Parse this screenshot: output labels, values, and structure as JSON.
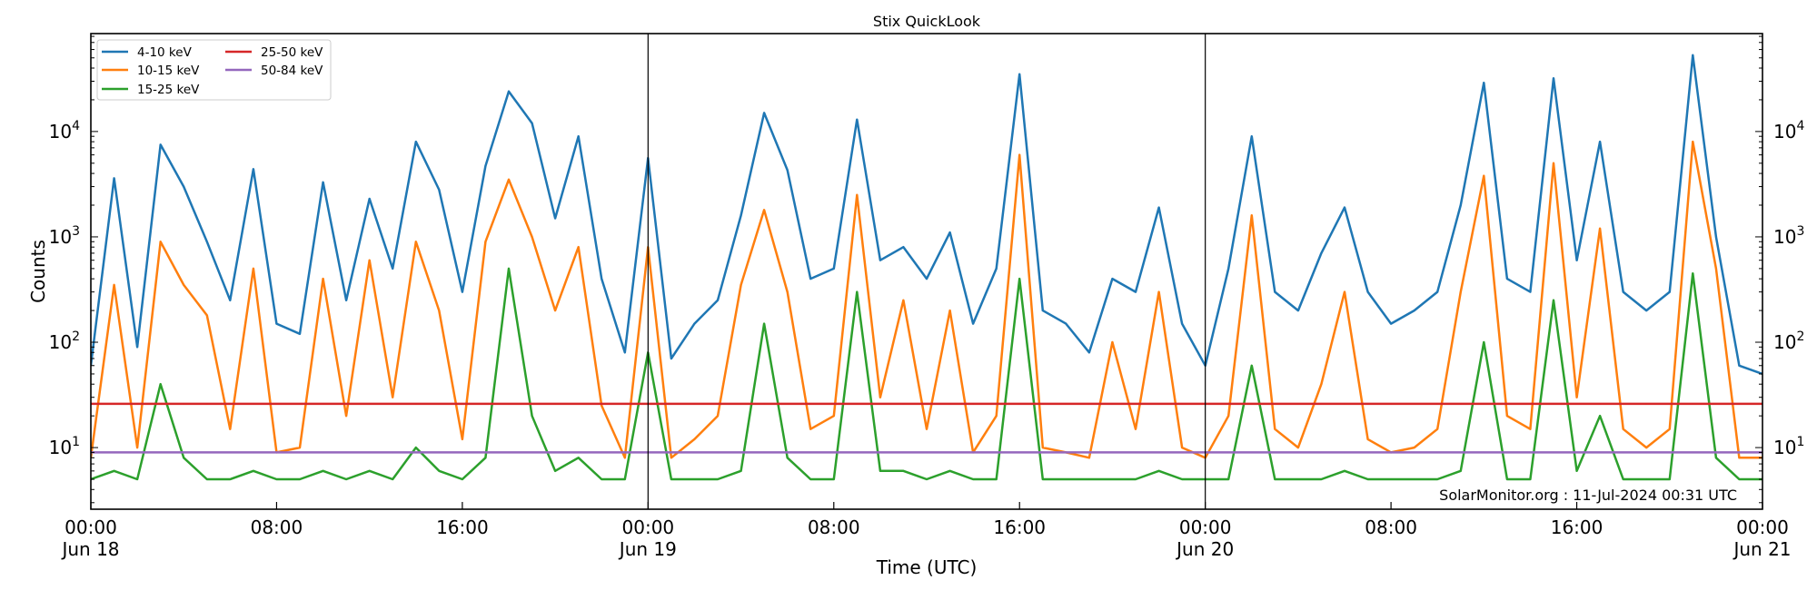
{
  "chart_data": {
    "type": "line",
    "title": "Stix QuickLook",
    "xlabel": "Time (UTC)",
    "ylabel": "Counts",
    "yscale": "log",
    "ylim": [
      2.6,
      85000
    ],
    "xlim": [
      "2024-06-18 00:00",
      "2024-06-21 00:00"
    ],
    "grid": false,
    "legend_placement": "top-left",
    "x_ticks": [
      {
        "at": "2024-06-18 00:00",
        "label": "00:00",
        "sub": "Jun 18"
      },
      {
        "at": "2024-06-18 08:00",
        "label": "08:00",
        "sub": ""
      },
      {
        "at": "2024-06-18 16:00",
        "label": "16:00",
        "sub": ""
      },
      {
        "at": "2024-06-19 00:00",
        "label": "00:00",
        "sub": "Jun 19"
      },
      {
        "at": "2024-06-19 08:00",
        "label": "08:00",
        "sub": ""
      },
      {
        "at": "2024-06-19 16:00",
        "label": "16:00",
        "sub": ""
      },
      {
        "at": "2024-06-20 00:00",
        "label": "00:00",
        "sub": "Jun 20"
      },
      {
        "at": "2024-06-20 08:00",
        "label": "08:00",
        "sub": ""
      },
      {
        "at": "2024-06-20 16:00",
        "label": "16:00",
        "sub": ""
      },
      {
        "at": "2024-06-21 00:00",
        "label": "00:00",
        "sub": "Jun 21"
      }
    ],
    "day_lines": [
      "2024-06-19 00:00",
      "2024-06-20 00:00"
    ],
    "y_ticks": [
      {
        "value": 10,
        "base": "10",
        "exp": "1"
      },
      {
        "value": 100,
        "base": "10",
        "exp": "2"
      },
      {
        "value": 1000,
        "base": "10",
        "exp": "3"
      },
      {
        "value": 10000,
        "base": "10",
        "exp": "4"
      }
    ],
    "annotation": "SolarMonitor.org : 11-Jul-2024 00:31 UTC",
    "x": [
      "2024-06-18 00:00",
      "2024-06-18 01:00",
      "2024-06-18 02:00",
      "2024-06-18 03:00",
      "2024-06-18 04:00",
      "2024-06-18 05:00",
      "2024-06-18 06:00",
      "2024-06-18 07:00",
      "2024-06-18 08:00",
      "2024-06-18 09:00",
      "2024-06-18 10:00",
      "2024-06-18 11:00",
      "2024-06-18 12:00",
      "2024-06-18 13:00",
      "2024-06-18 14:00",
      "2024-06-18 15:00",
      "2024-06-18 16:00",
      "2024-06-18 17:00",
      "2024-06-18 18:00",
      "2024-06-18 19:00",
      "2024-06-18 20:00",
      "2024-06-18 21:00",
      "2024-06-18 22:00",
      "2024-06-18 23:00",
      "2024-06-19 00:00",
      "2024-06-19 01:00",
      "2024-06-19 02:00",
      "2024-06-19 03:00",
      "2024-06-19 04:00",
      "2024-06-19 05:00",
      "2024-06-19 06:00",
      "2024-06-19 07:00",
      "2024-06-19 08:00",
      "2024-06-19 09:00",
      "2024-06-19 10:00",
      "2024-06-19 11:00",
      "2024-06-19 12:00",
      "2024-06-19 13:00",
      "2024-06-19 14:00",
      "2024-06-19 15:00",
      "2024-06-19 16:00",
      "2024-06-19 17:00",
      "2024-06-19 18:00",
      "2024-06-19 19:00",
      "2024-06-19 20:00",
      "2024-06-19 21:00",
      "2024-06-19 22:00",
      "2024-06-19 23:00",
      "2024-06-20 00:00",
      "2024-06-20 01:00",
      "2024-06-20 02:00",
      "2024-06-20 03:00",
      "2024-06-20 04:00",
      "2024-06-20 05:00",
      "2024-06-20 06:00",
      "2024-06-20 07:00",
      "2024-06-20 08:00",
      "2024-06-20 09:00",
      "2024-06-20 10:00",
      "2024-06-20 11:00",
      "2024-06-20 12:00",
      "2024-06-20 13:00",
      "2024-06-20 14:00",
      "2024-06-20 15:00",
      "2024-06-20 16:00",
      "2024-06-20 17:00",
      "2024-06-20 18:00",
      "2024-06-20 19:00",
      "2024-06-20 20:00",
      "2024-06-20 21:00",
      "2024-06-20 22:00",
      "2024-06-20 23:00",
      "2024-06-21 00:00"
    ],
    "series": [
      {
        "name": "4-10 keV",
        "color": "#1f77b4",
        "values": [
          60,
          3600,
          90,
          7500,
          3000,
          900,
          250,
          4400,
          150,
          120,
          3300,
          250,
          2300,
          500,
          8000,
          2800,
          300,
          4700,
          24000,
          12000,
          1500,
          9000,
          400,
          80,
          5600,
          70,
          150,
          250,
          1600,
          15000,
          4300,
          400,
          500,
          13000,
          600,
          800,
          400,
          1100,
          150,
          500,
          35000,
          200,
          150,
          80,
          400,
          300,
          1900,
          150,
          60,
          500,
          9000,
          300,
          200,
          700,
          1900,
          300,
          150,
          200,
          300,
          2000,
          29000,
          400,
          300,
          32000,
          600,
          8000,
          300,
          200,
          300,
          53000,
          1000,
          60,
          50
        ]
      },
      {
        "name": "10-15 keV",
        "color": "#ff7f0e",
        "values": [
          8,
          350,
          10,
          900,
          350,
          180,
          15,
          500,
          9,
          10,
          400,
          20,
          600,
          30,
          900,
          200,
          12,
          900,
          3500,
          1000,
          200,
          800,
          25,
          8,
          800,
          8,
          12,
          20,
          350,
          1800,
          300,
          15,
          20,
          2500,
          30,
          250,
          15,
          200,
          9,
          20,
          6000,
          10,
          9,
          8,
          100,
          15,
          300,
          10,
          8,
          20,
          1600,
          15,
          10,
          40,
          300,
          12,
          9,
          10,
          15,
          300,
          3800,
          20,
          15,
          5000,
          30,
          1200,
          15,
          10,
          15,
          8000,
          500,
          8,
          8
        ]
      },
      {
        "name": "15-25 keV",
        "color": "#2ca02c",
        "values": [
          5,
          6,
          5,
          40,
          8,
          5,
          5,
          6,
          5,
          5,
          6,
          5,
          6,
          5,
          10,
          6,
          5,
          8,
          500,
          20,
          6,
          8,
          5,
          5,
          80,
          5,
          5,
          5,
          6,
          150,
          8,
          5,
          5,
          300,
          6,
          6,
          5,
          6,
          5,
          5,
          400,
          5,
          5,
          5,
          5,
          5,
          6,
          5,
          5,
          5,
          60,
          5,
          5,
          5,
          6,
          5,
          5,
          5,
          5,
          6,
          100,
          5,
          5,
          250,
          6,
          20,
          5,
          5,
          5,
          450,
          8,
          5,
          5
        ]
      },
      {
        "name": "25-50 keV",
        "color": "#d62728",
        "values": [
          26,
          26,
          26,
          26,
          26,
          26,
          26,
          26,
          26,
          26,
          26,
          26,
          26,
          26,
          26,
          26,
          26,
          26,
          26,
          26,
          26,
          26,
          26,
          26,
          26,
          26,
          26,
          26,
          26,
          26,
          26,
          26,
          26,
          26,
          26,
          26,
          26,
          26,
          26,
          26,
          26,
          26,
          26,
          26,
          26,
          26,
          26,
          26,
          26,
          26,
          26,
          26,
          26,
          26,
          26,
          26,
          26,
          26,
          26,
          26,
          26,
          26,
          26,
          26,
          26,
          26,
          26,
          26,
          26,
          26,
          26,
          26,
          26
        ]
      },
      {
        "name": "50-84 keV",
        "color": "#9467bd",
        "values": [
          9,
          9,
          9,
          9,
          9,
          9,
          9,
          9,
          9,
          9,
          9,
          9,
          9,
          9,
          9,
          9,
          9,
          9,
          9,
          9,
          9,
          9,
          9,
          9,
          9,
          9,
          9,
          9,
          9,
          9,
          9,
          9,
          9,
          9,
          9,
          9,
          9,
          9,
          9,
          9,
          9,
          9,
          9,
          9,
          9,
          9,
          9,
          9,
          9,
          9,
          9,
          9,
          9,
          9,
          9,
          9,
          9,
          9,
          9,
          9,
          9,
          9,
          9,
          9,
          9,
          9,
          9,
          9,
          9,
          9,
          9,
          9,
          9
        ]
      }
    ]
  }
}
